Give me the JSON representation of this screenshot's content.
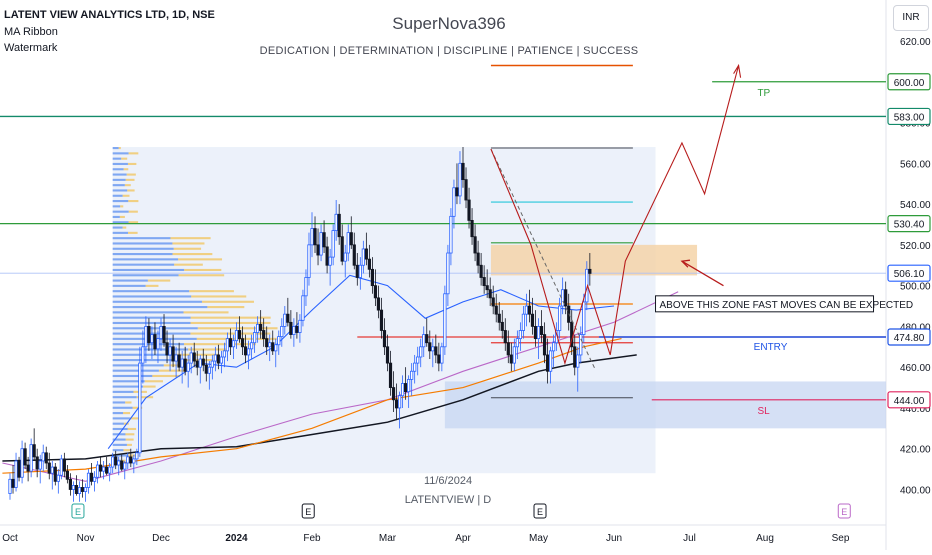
{
  "header": {
    "symbol": "LATENT VIEW ANALYTICS LTD, 1D, NSE",
    "indicator1": "MA Ribbon",
    "indicator2": "Watermark"
  },
  "watermark": {
    "author": "SuperNova396",
    "motto": "DEDICATION | DETERMINATION | DISCIPLINE | PATIENCE | SUCCESS",
    "date": "11/6/2024",
    "ticker": "LATENTVIEW | D"
  },
  "currency": "INR",
  "chart_data": {
    "type": "candlestick",
    "ylim": [
      388,
      632
    ],
    "y_ticks": [
      400,
      420,
      440,
      460,
      480,
      500,
      520,
      540,
      560,
      580,
      600,
      620
    ],
    "x_ticks": [
      "Oct",
      "Nov",
      "Dec",
      "2024",
      "Feb",
      "Mar",
      "Apr",
      "May",
      "Jun",
      "Jul",
      "Aug",
      "Sep"
    ],
    "x_tick_positions": [
      0,
      1,
      2,
      3,
      4,
      5,
      6,
      7,
      8,
      9,
      10,
      11
    ],
    "price_labels": [
      {
        "value": 600.0,
        "text": "600.00",
        "color": "#2e9b3a"
      },
      {
        "value": 583.0,
        "text": "583.00",
        "color": "#138a6a"
      },
      {
        "value": 530.4,
        "text": "530.40",
        "color": "#2e9b3a"
      },
      {
        "value": 506.1,
        "text": "506.10",
        "color": "#2962ff"
      },
      {
        "value": 474.8,
        "text": "474.80",
        "color": "#1e53e5"
      },
      {
        "value": 444.0,
        "text": "444.00",
        "color": "#e0245e"
      }
    ],
    "annotations": {
      "tp": "TP",
      "entry": "ENTRY",
      "sl": "SL",
      "zone_note": "ABOVE THIS ZONE FAST MOVES CAN BE EXPECTED"
    },
    "earnings_markers": [
      "E",
      "E",
      "E",
      "E"
    ],
    "candles": [
      [
        0.0,
        398,
        408,
        395,
        405
      ],
      [
        0.04,
        405,
        412,
        398,
        401
      ],
      [
        0.08,
        401,
        418,
        399,
        414
      ],
      [
        0.12,
        414,
        416,
        404,
        406
      ],
      [
        0.16,
        406,
        424,
        403,
        420
      ],
      [
        0.2,
        420,
        423,
        410,
        412
      ],
      [
        0.24,
        412,
        416,
        404,
        409
      ],
      [
        0.28,
        409,
        425,
        406,
        422
      ],
      [
        0.32,
        422,
        430,
        414,
        416
      ],
      [
        0.36,
        416,
        420,
        406,
        410
      ],
      [
        0.4,
        410,
        417,
        403,
        414
      ],
      [
        0.44,
        414,
        422,
        409,
        418
      ],
      [
        0.48,
        418,
        421,
        410,
        413
      ],
      [
        0.52,
        413,
        418,
        405,
        408
      ],
      [
        0.56,
        408,
        414,
        400,
        411
      ],
      [
        0.6,
        411,
        413,
        402,
        404
      ],
      [
        0.64,
        404,
        410,
        398,
        407
      ],
      [
        0.68,
        407,
        417,
        405,
        415
      ],
      [
        0.72,
        415,
        418,
        406,
        409
      ],
      [
        0.76,
        409,
        412,
        403,
        405
      ],
      [
        0.8,
        405,
        408,
        397,
        400
      ],
      [
        0.84,
        400,
        404,
        394,
        402
      ],
      [
        0.88,
        402,
        407,
        397,
        398
      ],
      [
        0.92,
        398,
        404,
        394,
        401
      ],
      [
        0.96,
        401,
        405,
        396,
        399
      ],
      [
        1.0,
        399,
        403,
        394,
        401
      ],
      [
        1.04,
        401,
        410,
        398,
        408
      ],
      [
        1.08,
        408,
        413,
        402,
        404
      ],
      [
        1.12,
        404,
        409,
        399,
        406
      ],
      [
        1.16,
        406,
        414,
        403,
        412
      ],
      [
        1.2,
        412,
        416,
        406,
        409
      ],
      [
        1.24,
        409,
        414,
        405,
        411
      ],
      [
        1.28,
        411,
        416,
        407,
        408
      ],
      [
        1.32,
        408,
        413,
        404,
        411
      ],
      [
        1.36,
        411,
        418,
        408,
        416
      ],
      [
        1.4,
        416,
        419,
        410,
        412
      ],
      [
        1.44,
        412,
        416,
        407,
        414
      ],
      [
        1.48,
        414,
        417,
        409,
        410
      ],
      [
        1.52,
        410,
        414,
        405,
        413
      ],
      [
        1.56,
        413,
        418,
        410,
        416
      ],
      [
        1.6,
        416,
        420,
        411,
        413
      ],
      [
        1.64,
        413,
        417,
        408,
        415
      ],
      [
        1.68,
        415,
        420,
        412,
        418
      ],
      [
        1.72,
        418,
        470,
        416,
        462
      ],
      [
        1.76,
        462,
        478,
        452,
        470
      ],
      [
        1.8,
        470,
        485,
        462,
        480
      ],
      [
        1.84,
        480,
        484,
        468,
        472
      ],
      [
        1.88,
        472,
        480,
        464,
        476
      ],
      [
        1.92,
        476,
        482,
        466,
        469
      ],
      [
        1.96,
        469,
        478,
        462,
        474
      ],
      [
        2.0,
        474,
        484,
        468,
        480
      ],
      [
        2.04,
        480,
        486,
        470,
        472
      ],
      [
        2.08,
        472,
        478,
        462,
        466
      ],
      [
        2.12,
        466,
        474,
        458,
        470
      ],
      [
        2.16,
        470,
        476,
        460,
        463
      ],
      [
        2.2,
        463,
        470,
        455,
        466
      ],
      [
        2.24,
        466,
        472,
        458,
        460
      ],
      [
        2.28,
        460,
        468,
        452,
        464
      ],
      [
        2.32,
        464,
        470,
        456,
        458
      ],
      [
        2.36,
        458,
        466,
        450,
        462
      ],
      [
        2.4,
        462,
        470,
        457,
        467
      ],
      [
        2.44,
        467,
        472,
        460,
        463
      ],
      [
        2.48,
        463,
        468,
        456,
        460
      ],
      [
        2.52,
        460,
        466,
        452,
        464
      ],
      [
        2.56,
        464,
        469,
        458,
        461
      ],
      [
        2.6,
        461,
        466,
        453,
        457
      ],
      [
        2.64,
        457,
        463,
        449,
        460
      ],
      [
        2.68,
        460,
        466,
        454,
        463
      ],
      [
        2.72,
        463,
        470,
        458,
        466
      ],
      [
        2.76,
        466,
        471,
        459,
        462
      ],
      [
        2.8,
        462,
        468,
        457,
        465
      ],
      [
        2.84,
        465,
        472,
        460,
        468
      ],
      [
        2.88,
        468,
        477,
        463,
        474
      ],
      [
        2.92,
        474,
        479,
        466,
        470
      ],
      [
        2.96,
        470,
        476,
        464,
        473
      ],
      [
        3.0,
        473,
        482,
        469,
        478
      ],
      [
        3.04,
        478,
        485,
        472,
        474
      ],
      [
        3.08,
        474,
        480,
        466,
        470
      ],
      [
        3.12,
        470,
        476,
        462,
        466
      ],
      [
        3.16,
        466,
        473,
        459,
        469
      ],
      [
        3.2,
        469,
        476,
        464,
        472
      ],
      [
        3.24,
        472,
        480,
        467,
        477
      ],
      [
        3.28,
        477,
        485,
        472,
        481
      ],
      [
        3.32,
        481,
        488,
        474,
        478
      ],
      [
        3.36,
        478,
        484,
        470,
        474
      ],
      [
        3.4,
        474,
        480,
        466,
        470
      ],
      [
        3.44,
        470,
        476,
        463,
        472
      ],
      [
        3.48,
        472,
        478,
        466,
        468
      ],
      [
        3.52,
        468,
        474,
        460,
        471
      ],
      [
        3.56,
        471,
        478,
        466,
        475
      ],
      [
        3.6,
        475,
        484,
        470,
        480
      ],
      [
        3.64,
        480,
        490,
        476,
        486
      ],
      [
        3.68,
        486,
        494,
        480,
        482
      ],
      [
        3.72,
        482,
        488,
        474,
        476
      ],
      [
        3.76,
        476,
        484,
        470,
        480
      ],
      [
        3.8,
        480,
        487,
        474,
        477
      ],
      [
        3.84,
        477,
        486,
        472,
        483
      ],
      [
        3.88,
        483,
        498,
        480,
        495
      ],
      [
        3.92,
        495,
        508,
        490,
        504
      ],
      [
        3.96,
        504,
        526,
        500,
        520
      ],
      [
        4.0,
        520,
        536,
        514,
        528
      ],
      [
        4.04,
        528,
        534,
        516,
        520
      ],
      [
        4.08,
        520,
        528,
        510,
        515
      ],
      [
        4.12,
        515,
        530,
        512,
        526
      ],
      [
        4.16,
        526,
        532,
        516,
        519
      ],
      [
        4.2,
        519,
        524,
        506,
        510
      ],
      [
        4.24,
        510,
        518,
        500,
        514
      ],
      [
        4.28,
        514,
        530,
        510,
        527
      ],
      [
        4.32,
        527,
        542,
        522,
        535
      ],
      [
        4.36,
        535,
        540,
        520,
        524
      ],
      [
        4.4,
        524,
        530,
        510,
        512
      ],
      [
        4.44,
        512,
        520,
        504,
        516
      ],
      [
        4.48,
        516,
        530,
        512,
        526
      ],
      [
        4.52,
        526,
        534,
        518,
        520
      ],
      [
        4.56,
        520,
        526,
        508,
        510
      ],
      [
        4.6,
        510,
        516,
        500,
        504
      ],
      [
        4.64,
        504,
        514,
        498,
        510
      ],
      [
        4.68,
        510,
        522,
        506,
        518
      ],
      [
        4.72,
        518,
        526,
        510,
        513
      ],
      [
        4.76,
        513,
        520,
        504,
        508
      ],
      [
        4.8,
        508,
        514,
        496,
        500
      ],
      [
        4.84,
        500,
        508,
        490,
        494
      ],
      [
        4.88,
        494,
        500,
        484,
        488
      ],
      [
        4.92,
        488,
        494,
        474,
        478
      ],
      [
        4.96,
        478,
        484,
        466,
        470
      ],
      [
        5.0,
        470,
        476,
        458,
        462
      ],
      [
        5.04,
        462,
        468,
        446,
        450
      ],
      [
        5.08,
        450,
        458,
        438,
        444
      ],
      [
        5.12,
        444,
        452,
        434,
        440
      ],
      [
        5.16,
        440,
        448,
        430,
        446
      ],
      [
        5.2,
        446,
        456,
        440,
        452
      ],
      [
        5.24,
        452,
        460,
        444,
        448
      ],
      [
        5.28,
        448,
        456,
        440,
        454
      ],
      [
        5.32,
        454,
        462,
        446,
        458
      ],
      [
        5.36,
        458,
        466,
        452,
        462
      ],
      [
        5.4,
        462,
        470,
        456,
        465
      ],
      [
        5.44,
        465,
        474,
        460,
        470
      ],
      [
        5.48,
        470,
        480,
        465,
        476
      ],
      [
        5.52,
        476,
        484,
        470,
        472
      ],
      [
        5.56,
        472,
        478,
        464,
        468
      ],
      [
        5.6,
        468,
        474,
        460,
        470
      ],
      [
        5.64,
        470,
        476,
        462,
        466
      ],
      [
        5.68,
        466,
        472,
        458,
        462
      ],
      [
        5.72,
        462,
        472,
        458,
        470
      ],
      [
        5.76,
        470,
        500,
        466,
        496
      ],
      [
        5.8,
        496,
        520,
        490,
        516
      ],
      [
        5.84,
        516,
        538,
        510,
        534
      ],
      [
        5.88,
        534,
        552,
        528,
        548
      ],
      [
        5.92,
        548,
        560,
        540,
        544
      ],
      [
        5.96,
        544,
        566,
        540,
        560
      ],
      [
        6.0,
        560,
        568,
        548,
        552
      ],
      [
        6.04,
        552,
        558,
        538,
        542
      ],
      [
        6.08,
        542,
        548,
        528,
        532
      ],
      [
        6.12,
        532,
        538,
        520,
        524
      ],
      [
        6.16,
        524,
        530,
        512,
        516
      ],
      [
        6.2,
        516,
        522,
        506,
        510
      ],
      [
        6.24,
        510,
        516,
        500,
        504
      ],
      [
        6.28,
        504,
        510,
        496,
        500
      ],
      [
        6.32,
        500,
        508,
        494,
        498
      ],
      [
        6.36,
        498,
        504,
        490,
        494
      ],
      [
        6.4,
        494,
        500,
        486,
        490
      ],
      [
        6.44,
        490,
        496,
        482,
        486
      ],
      [
        6.48,
        486,
        492,
        478,
        482
      ],
      [
        6.52,
        482,
        488,
        474,
        478
      ],
      [
        6.56,
        478,
        484,
        468,
        472
      ],
      [
        6.6,
        472,
        478,
        462,
        466
      ],
      [
        6.64,
        466,
        472,
        458,
        462
      ],
      [
        6.68,
        462,
        474,
        458,
        470
      ],
      [
        6.72,
        470,
        478,
        464,
        474
      ],
      [
        6.76,
        474,
        482,
        468,
        478
      ],
      [
        6.8,
        478,
        490,
        474,
        486
      ],
      [
        6.84,
        486,
        496,
        480,
        490
      ],
      [
        6.88,
        490,
        498,
        482,
        486
      ],
      [
        6.92,
        486,
        494,
        476,
        480
      ],
      [
        6.96,
        480,
        488,
        470,
        474
      ],
      [
        7.0,
        474,
        484,
        464,
        480
      ],
      [
        7.04,
        480,
        488,
        472,
        476
      ],
      [
        7.08,
        476,
        482,
        462,
        466
      ],
      [
        7.12,
        466,
        474,
        452,
        458
      ],
      [
        7.16,
        458,
        470,
        452,
        468
      ],
      [
        7.2,
        468,
        476,
        460,
        472
      ],
      [
        7.24,
        472,
        482,
        468,
        478
      ],
      [
        7.28,
        478,
        494,
        474,
        490
      ],
      [
        7.32,
        490,
        504,
        486,
        498
      ],
      [
        7.36,
        498,
        502,
        486,
        490
      ],
      [
        7.4,
        490,
        496,
        478,
        482
      ],
      [
        7.44,
        482,
        488,
        466,
        470
      ],
      [
        7.48,
        470,
        476,
        456,
        460
      ],
      [
        7.52,
        460,
        470,
        448,
        466
      ],
      [
        7.56,
        466,
        480,
        462,
        476
      ],
      [
        7.6,
        476,
        496,
        472,
        492
      ],
      [
        7.64,
        492,
        512,
        488,
        508
      ],
      [
        7.68,
        508,
        516,
        500,
        506
      ]
    ]
  }
}
